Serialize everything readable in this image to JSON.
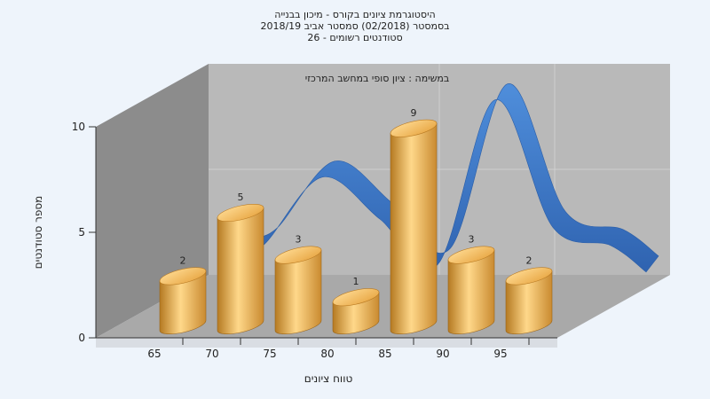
{
  "chart_data": {
    "type": "bar",
    "title_lines": [
      "היסטוגרמת ציונים בקורס - מיכון בבנייה",
      "בסמסטר  (02/2018)  סמסטר אביב 2018/19",
      "סטודנטים רשומים - 26"
    ],
    "annotation": "במשימה : ציון סופי במחשב המרכזי",
    "xlabel": "טווח ציונים",
    "ylabel": "מספר סטודנטים",
    "categories": [
      "65",
      "70",
      "75",
      "80",
      "85",
      "90",
      "95"
    ],
    "values": [
      2,
      5,
      3,
      1,
      9,
      3,
      2
    ],
    "y_ticks": [
      0,
      5,
      10
    ],
    "ylim": [
      0,
      10
    ],
    "grid": true,
    "colors": {
      "bar": "#e9a94a",
      "curve": "#3a78c9",
      "back_wall": "#b8b8b8",
      "side_wall": "#8a8a8a",
      "floor": "#a8a8a8"
    }
  }
}
